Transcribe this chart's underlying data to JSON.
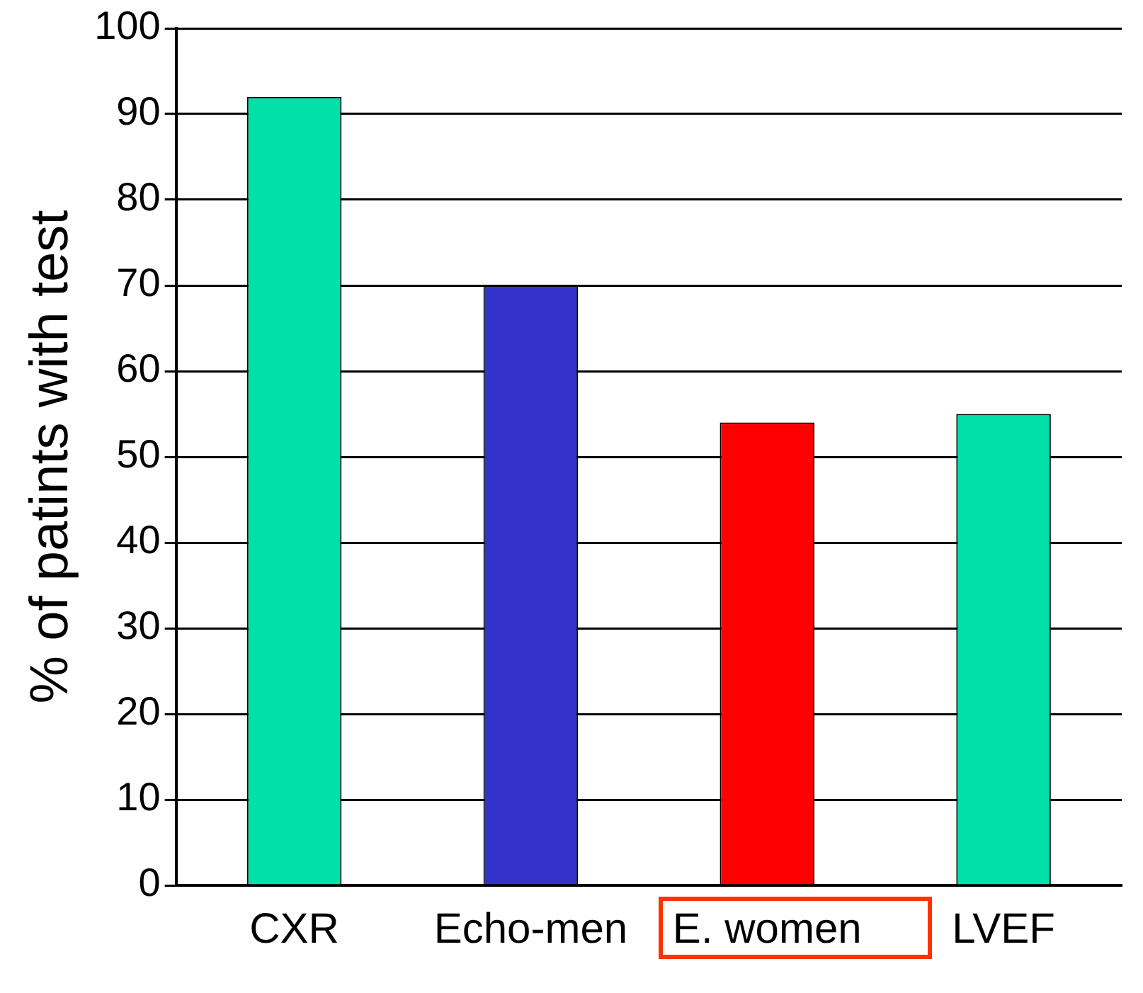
{
  "chart_data": {
    "type": "bar",
    "ylabel": "% of patints with test",
    "categories": [
      "CXR",
      "Echo-men",
      "E. women",
      "LVEF"
    ],
    "values": [
      92,
      70,
      54,
      55
    ],
    "colors": [
      "#00e0a8",
      "#3333cc",
      "#ff0000",
      "#00e0a8"
    ],
    "ylim": [
      0,
      100
    ],
    "yticks": [
      0,
      10,
      20,
      30,
      40,
      50,
      60,
      70,
      80,
      90,
      100
    ],
    "grid": "y",
    "legend": false
  }
}
